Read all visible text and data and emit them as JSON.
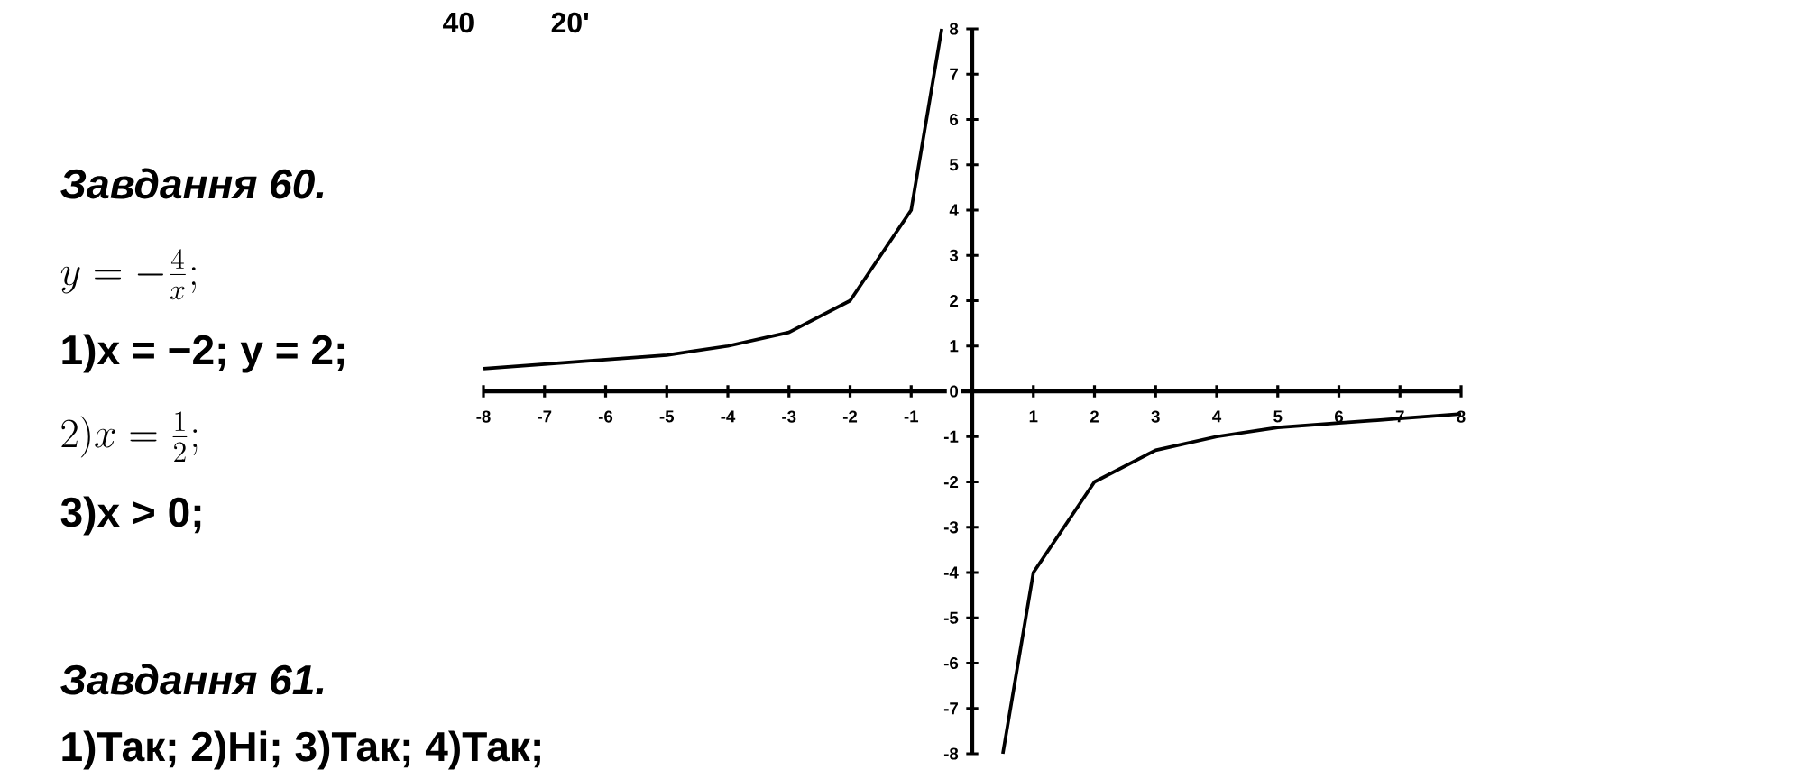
{
  "chart_data": {
    "type": "line",
    "series": [
      {
        "color": "#000000",
        "x": [
          -8,
          -7,
          -6,
          -5,
          -4,
          -3,
          -2,
          -1,
          -0.5
        ],
        "values": [
          0.5,
          0.6,
          0.7,
          0.8,
          1,
          1.3,
          2,
          4,
          8
        ]
      },
      {
        "color": "#000000",
        "x": [
          0.5,
          1,
          2,
          3,
          4,
          5,
          6,
          7,
          8
        ],
        "values": [
          -8,
          -4,
          -2,
          -1.3,
          -1,
          -0.8,
          -0.7,
          -0.6,
          -0.5
        ]
      }
    ],
    "xlim": [
      -8,
      8
    ],
    "ylim": [
      -8,
      8
    ],
    "xticks": [
      -8,
      -7,
      -6,
      -5,
      -4,
      -3,
      -2,
      -1,
      1,
      2,
      3,
      4,
      5,
      6,
      7,
      8
    ],
    "yticks": [
      -8,
      -7,
      -6,
      -5,
      -4,
      -3,
      -2,
      -1,
      0,
      1,
      2,
      3,
      4,
      5,
      6,
      7,
      8
    ],
    "grid": false,
    "marker": "none",
    "line_style": "solid",
    "annotations": [
      "40",
      "20'",
      "Завдання 60.",
      "y=-\\frac{4}{x};",
      "1)x = −2; y = 2;",
      "2)x=\\frac{1}{2};",
      "3)x > 0;",
      "Завдання 61.",
      "1)Так;   2)Ні;   3)Так;   4)Так;"
    ]
  }
}
